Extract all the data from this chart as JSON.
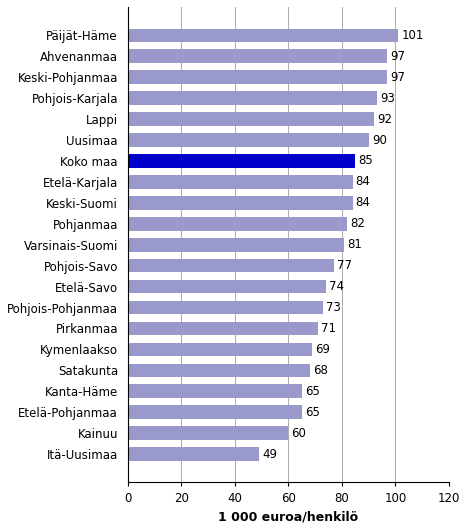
{
  "categories": [
    "Itä-Uusimaa",
    "Kainuu",
    "Etelä-Pohjanmaa",
    "Kanta-Häme",
    "Satakunta",
    "Kymenlaakso",
    "Pirkanmaa",
    "Pohjois-Pohjanmaa",
    "Etelä-Savo",
    "Pohjois-Savo",
    "Varsinais-Suomi",
    "Pohjanmaa",
    "Keski-Suomi",
    "Etelä-Karjala",
    "Koko maa",
    "Uusimaa",
    "Lappi",
    "Pohjois-Karjala",
    "Keski-Pohjanmaa",
    "Ahvenanmaa",
    "Päijät-Häme"
  ],
  "values": [
    49,
    60,
    65,
    65,
    68,
    69,
    71,
    73,
    74,
    77,
    81,
    82,
    84,
    84,
    85,
    90,
    92,
    93,
    97,
    97,
    101
  ],
  "bar_colors": [
    "#9999cc",
    "#9999cc",
    "#9999cc",
    "#9999cc",
    "#9999cc",
    "#9999cc",
    "#9999cc",
    "#9999cc",
    "#9999cc",
    "#9999cc",
    "#9999cc",
    "#9999cc",
    "#9999cc",
    "#9999cc",
    "#0000cc",
    "#9999cc",
    "#9999cc",
    "#9999cc",
    "#9999cc",
    "#9999cc",
    "#9999cc"
  ],
  "xlabel": "1 000 euroa/henkilö",
  "xlim": [
    0,
    120
  ],
  "xticks": [
    0,
    20,
    40,
    60,
    80,
    100,
    120
  ],
  "background_color": "#ffffff",
  "bar_height": 0.65,
  "grid_color": "#aaaaaa",
  "label_fontsize": 8.5,
  "value_fontsize": 8.5,
  "xlabel_fontsize": 9,
  "tick_fontsize": 8.5
}
